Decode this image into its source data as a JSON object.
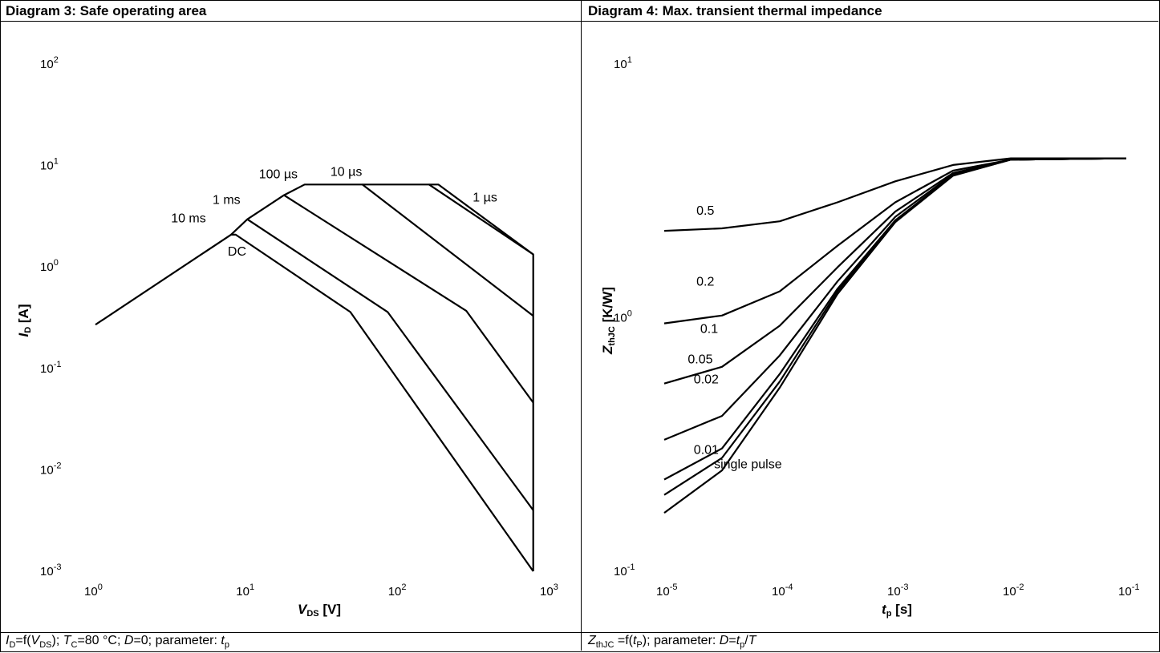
{
  "diagram3": {
    "title": "Diagram 3: Safe operating area",
    "caption": {
      "l1": "I",
      "s1": "D",
      "l2": "=f(",
      "i2": "V",
      "s2": "DS",
      "l3": "); ",
      "i3": "T",
      "s3": "C",
      "l4": "=80 °C; ",
      "i4": "D",
      "l5": "=0; parameter: ",
      "i5": "t",
      "s5": "p"
    }
  },
  "diagram4": {
    "title": "Diagram 4: Max. transient thermal impedance",
    "caption": {
      "i1": "Z",
      "s1": "thJC",
      "l2": " =f(",
      "i2": "t",
      "s2": "P",
      "l3": "); parameter: ",
      "i3": "D",
      "l4": "=",
      "i4": "t",
      "s4": "p",
      "l5": "/",
      "i5": "T"
    }
  },
  "chart_data": [
    {
      "type": "line",
      "title": "Diagram 3: Safe operating area",
      "xlabel": "VDS [V]",
      "ylabel": "ID [A]",
      "xscale": "log",
      "yscale": "log",
      "xlim": [
        1,
        1000
      ],
      "ylim": [
        0.001,
        100
      ],
      "xticks": [
        {
          "base": "10",
          "exp": "0"
        },
        {
          "base": "10",
          "exp": "1"
        },
        {
          "base": "10",
          "exp": "2"
        },
        {
          "base": "10",
          "exp": "3"
        }
      ],
      "yticks": [
        {
          "base": "10",
          "exp": "-3"
        },
        {
          "base": "10",
          "exp": "-2"
        },
        {
          "base": "10",
          "exp": "-1"
        },
        {
          "base": "10",
          "exp": "0"
        },
        {
          "base": "10",
          "exp": "1"
        },
        {
          "base": "10",
          "exp": "2"
        }
      ],
      "grid": false,
      "series": [
        {
          "name": "DC",
          "points": [
            [
              1.05,
              0.27
            ],
            [
              8.2,
              2.08
            ],
            [
              8.8,
              2.08
            ],
            [
              50,
              0.36
            ],
            [
              800,
              0.001
            ]
          ]
        },
        {
          "name": "10 ms",
          "points": [
            [
              8.2,
              2.08
            ],
            [
              10.5,
              2.95
            ],
            [
              88,
              0.36
            ],
            [
              800,
              0.004
            ]
          ]
        },
        {
          "name": "1 ms",
          "points": [
            [
              10.5,
              2.95
            ],
            [
              18.3,
              5.1
            ],
            [
              290,
              0.37
            ],
            [
              800,
              0.046
            ]
          ]
        },
        {
          "name": "100 µs",
          "points": [
            [
              18.3,
              5.1
            ],
            [
              25,
              6.5
            ],
            [
              60,
              6.5
            ],
            [
              800,
              0.33
            ]
          ]
        },
        {
          "name": "10 µs",
          "points": [
            [
              60,
              6.5
            ],
            [
              165,
              6.5
            ],
            [
              800,
              1.33
            ]
          ]
        },
        {
          "name": "1 µs",
          "points": [
            [
              165,
              6.5
            ],
            [
              190,
              6.5
            ],
            [
              800,
              1.33
            ],
            [
              800,
              0.001
            ]
          ]
        }
      ],
      "annotations": [
        {
          "text": "DC",
          "x": 7.8,
          "y": 1.3
        },
        {
          "text": "10 ms",
          "x": 3.3,
          "y": 2.75
        },
        {
          "text": "1 ms",
          "x": 6.2,
          "y": 4.2
        },
        {
          "text": "100 µs",
          "x": 12.5,
          "y": 7.5
        },
        {
          "text": "10 µs",
          "x": 37,
          "y": 7.9
        },
        {
          "text": "1 µs",
          "x": 320,
          "y": 4.4
        }
      ]
    },
    {
      "type": "line",
      "title": "Diagram 4: Max. transient thermal impedance",
      "xlabel": "tp [s]",
      "ylabel": "ZthJC [K/W]",
      "xscale": "log",
      "yscale": "log",
      "xlim": [
        1e-05,
        0.1
      ],
      "ylim": [
        0.1,
        10
      ],
      "xticks": [
        {
          "base": "10",
          "exp": "-5"
        },
        {
          "base": "10",
          "exp": "-4"
        },
        {
          "base": "10",
          "exp": "-3"
        },
        {
          "base": "10",
          "exp": "-2"
        },
        {
          "base": "10",
          "exp": "-1"
        }
      ],
      "yticks": [
        {
          "base": "10",
          "exp": "-1"
        },
        {
          "base": "10",
          "exp": "0"
        },
        {
          "base": "10",
          "exp": "1"
        }
      ],
      "grid": false,
      "series": [
        {
          "name": "0.5",
          "points": [
            [
              1e-05,
              2.2
            ],
            [
              3.16e-05,
              2.25
            ],
            [
              0.0001,
              2.4
            ],
            [
              0.000316,
              2.85
            ],
            [
              0.001,
              3.45
            ],
            [
              0.00316,
              4.0
            ],
            [
              0.01,
              4.25
            ],
            [
              0.1,
              4.25
            ]
          ]
        },
        {
          "name": "0.2",
          "points": [
            [
              1e-05,
              0.95
            ],
            [
              3.16e-05,
              1.02
            ],
            [
              0.0001,
              1.27
            ],
            [
              0.000316,
              1.92
            ],
            [
              0.001,
              2.85
            ],
            [
              0.00316,
              3.8
            ],
            [
              0.01,
              4.2
            ],
            [
              0.1,
              4.25
            ]
          ]
        },
        {
          "name": "0.1",
          "points": [
            [
              1e-05,
              0.55
            ],
            [
              3.16e-05,
              0.64
            ],
            [
              0.0001,
              0.93
            ],
            [
              0.000316,
              1.58
            ],
            [
              0.001,
              2.62
            ],
            [
              0.00316,
              3.72
            ],
            [
              0.01,
              4.2
            ],
            [
              0.1,
              4.25
            ]
          ]
        },
        {
          "name": "0.05",
          "points": [
            [
              1e-05,
              0.33
            ],
            [
              3.16e-05,
              0.41
            ],
            [
              0.0001,
              0.71
            ],
            [
              0.000316,
              1.39
            ],
            [
              0.001,
              2.5
            ],
            [
              0.00316,
              3.68
            ],
            [
              0.01,
              4.2
            ],
            [
              0.1,
              4.25
            ]
          ]
        },
        {
          "name": "0.02",
          "points": [
            [
              1e-05,
              0.23
            ],
            [
              3.16e-05,
              0.305
            ],
            [
              0.0001,
              0.6
            ],
            [
              0.000316,
              1.3
            ],
            [
              0.001,
              2.42
            ],
            [
              0.00316,
              3.65
            ],
            [
              0.01,
              4.2
            ],
            [
              0.1,
              4.25
            ]
          ]
        },
        {
          "name": "0.01",
          "points": [
            [
              1e-05,
              0.2
            ],
            [
              3.16e-05,
              0.28
            ],
            [
              0.0001,
              0.56
            ],
            [
              0.000316,
              1.27
            ],
            [
              0.001,
              2.4
            ],
            [
              0.00316,
              3.64
            ],
            [
              0.01,
              4.2
            ],
            [
              0.1,
              4.25
            ]
          ]
        },
        {
          "name": "single pulse",
          "points": [
            [
              1e-05,
              0.17
            ],
            [
              3.16e-05,
              0.25
            ],
            [
              0.0001,
              0.53
            ],
            [
              0.000316,
              1.24
            ],
            [
              0.001,
              2.38
            ],
            [
              0.00316,
              3.63
            ],
            [
              0.01,
              4.2
            ],
            [
              0.1,
              4.25
            ]
          ]
        }
      ],
      "annotations": [
        {
          "text": "0.5",
          "x": 1.9e-05,
          "y": 2.55
        },
        {
          "text": "0.2",
          "x": 1.9e-05,
          "y": 1.34
        },
        {
          "text": "0.1",
          "x": 2.05e-05,
          "y": 0.87
        },
        {
          "text": "0.05",
          "x": 1.6e-05,
          "y": 0.66
        },
        {
          "text": "0.02",
          "x": 1.8e-05,
          "y": 0.55
        },
        {
          "text": "0.01",
          "x": 1.8e-05,
          "y": 0.29
        },
        {
          "text": "single pulse",
          "x": 2.7e-05,
          "y": 0.255
        }
      ]
    }
  ]
}
